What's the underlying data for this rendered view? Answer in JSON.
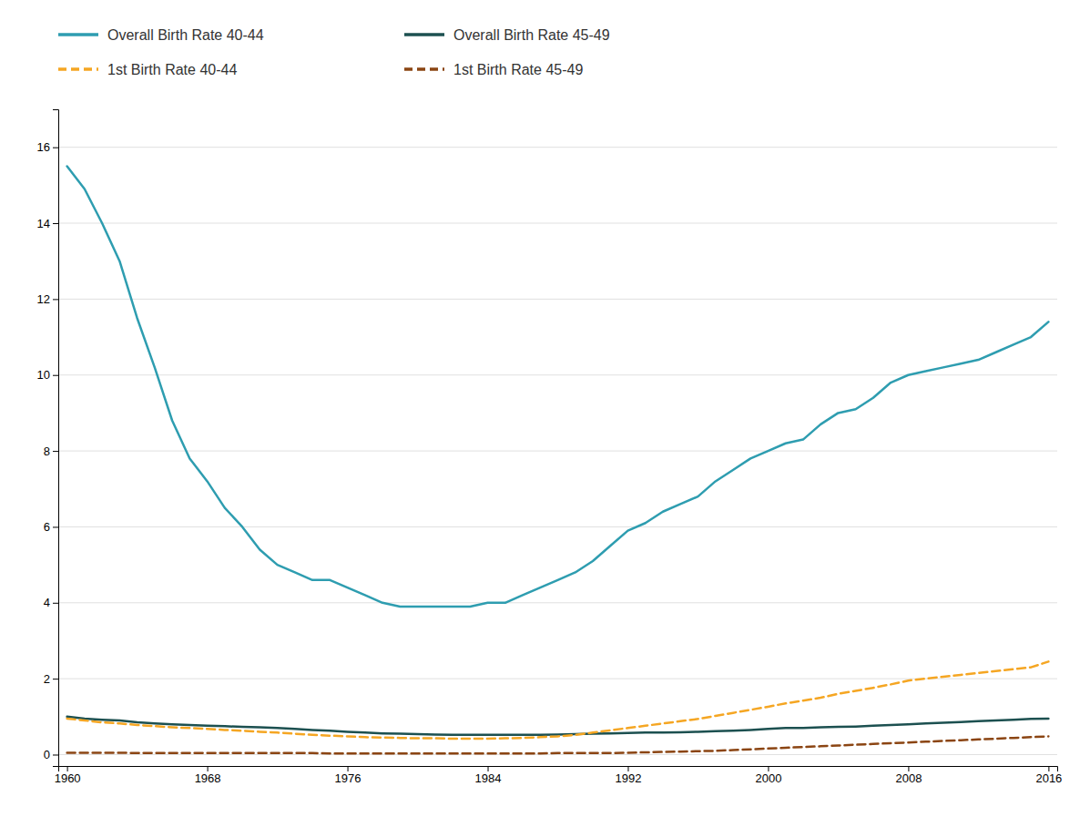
{
  "chart_data": {
    "type": "line",
    "x": [
      1960,
      1961,
      1962,
      1963,
      1964,
      1965,
      1966,
      1967,
      1968,
      1969,
      1970,
      1971,
      1972,
      1973,
      1974,
      1975,
      1976,
      1977,
      1978,
      1979,
      1980,
      1981,
      1982,
      1983,
      1984,
      1985,
      1986,
      1987,
      1988,
      1989,
      1990,
      1991,
      1992,
      1993,
      1994,
      1995,
      1996,
      1997,
      1998,
      1999,
      2000,
      2001,
      2002,
      2003,
      2004,
      2005,
      2006,
      2007,
      2008,
      2009,
      2010,
      2011,
      2012,
      2013,
      2014,
      2015,
      2016
    ],
    "series": [
      {
        "name": "Overall Birth Rate 40-44",
        "color": "#2E9DB0",
        "line_style": "solid",
        "values": [
          15.5,
          14.9,
          14.0,
          13.0,
          11.5,
          10.2,
          8.8,
          7.8,
          7.2,
          6.5,
          6.0,
          5.4,
          5.0,
          4.8,
          4.6,
          4.6,
          4.4,
          4.2,
          4.0,
          3.9,
          3.9,
          3.9,
          3.9,
          3.9,
          4.0,
          4.0,
          4.2,
          4.4,
          4.6,
          4.8,
          5.1,
          5.5,
          5.9,
          6.1,
          6.4,
          6.6,
          6.8,
          7.2,
          7.5,
          7.8,
          8.0,
          8.2,
          8.3,
          8.7,
          9.0,
          9.1,
          9.4,
          9.8,
          10.0,
          10.1,
          10.2,
          10.3,
          10.4,
          10.6,
          10.8,
          11.0,
          11.4
        ]
      },
      {
        "name": "Overall Birth Rate 45-49",
        "color": "#1C5050",
        "line_style": "solid",
        "values": [
          1.0,
          0.95,
          0.92,
          0.9,
          0.85,
          0.82,
          0.8,
          0.78,
          0.76,
          0.75,
          0.73,
          0.72,
          0.7,
          0.68,
          0.65,
          0.63,
          0.6,
          0.58,
          0.56,
          0.55,
          0.54,
          0.53,
          0.52,
          0.52,
          0.52,
          0.52,
          0.52,
          0.52,
          0.53,
          0.54,
          0.55,
          0.56,
          0.57,
          0.58,
          0.58,
          0.59,
          0.6,
          0.62,
          0.63,
          0.65,
          0.68,
          0.7,
          0.7,
          0.72,
          0.73,
          0.74,
          0.76,
          0.78,
          0.8,
          0.82,
          0.84,
          0.86,
          0.88,
          0.9,
          0.92,
          0.94,
          0.95
        ]
      },
      {
        "name": "1st Birth Rate 40-44",
        "color": "#F5A623",
        "line_style": "dashed",
        "values": [
          0.95,
          0.9,
          0.85,
          0.82,
          0.78,
          0.75,
          0.72,
          0.7,
          0.68,
          0.65,
          0.63,
          0.6,
          0.58,
          0.55,
          0.52,
          0.5,
          0.48,
          0.46,
          0.45,
          0.44,
          0.43,
          0.43,
          0.42,
          0.42,
          0.42,
          0.43,
          0.44,
          0.46,
          0.48,
          0.52,
          0.58,
          0.64,
          0.7,
          0.76,
          0.82,
          0.88,
          0.94,
          1.02,
          1.1,
          1.18,
          1.26,
          1.35,
          1.42,
          1.5,
          1.6,
          1.68,
          1.76,
          1.85,
          1.95,
          2.0,
          2.05,
          2.1,
          2.15,
          2.2,
          2.25,
          2.3,
          2.45
        ]
      },
      {
        "name": "1st Birth Rate 45-49",
        "color": "#8B4513",
        "line_style": "dashed",
        "values": [
          0.05,
          0.05,
          0.05,
          0.05,
          0.04,
          0.04,
          0.04,
          0.04,
          0.04,
          0.04,
          0.04,
          0.04,
          0.04,
          0.04,
          0.04,
          0.03,
          0.03,
          0.03,
          0.03,
          0.03,
          0.03,
          0.03,
          0.03,
          0.03,
          0.03,
          0.03,
          0.03,
          0.03,
          0.04,
          0.04,
          0.04,
          0.04,
          0.05,
          0.06,
          0.07,
          0.08,
          0.09,
          0.1,
          0.12,
          0.14,
          0.16,
          0.18,
          0.2,
          0.22,
          0.24,
          0.26,
          0.28,
          0.3,
          0.32,
          0.34,
          0.36,
          0.38,
          0.4,
          0.42,
          0.44,
          0.46,
          0.48
        ]
      }
    ],
    "xlim": [
      1959.5,
      2016.5
    ],
    "ylim": [
      -0.3,
      17
    ],
    "xticks": [
      1960,
      1968,
      1976,
      1984,
      1992,
      2000,
      2008,
      2016
    ],
    "yticks": [
      0,
      2,
      4,
      6,
      8,
      10,
      12,
      14,
      16
    ],
    "grid": true
  }
}
